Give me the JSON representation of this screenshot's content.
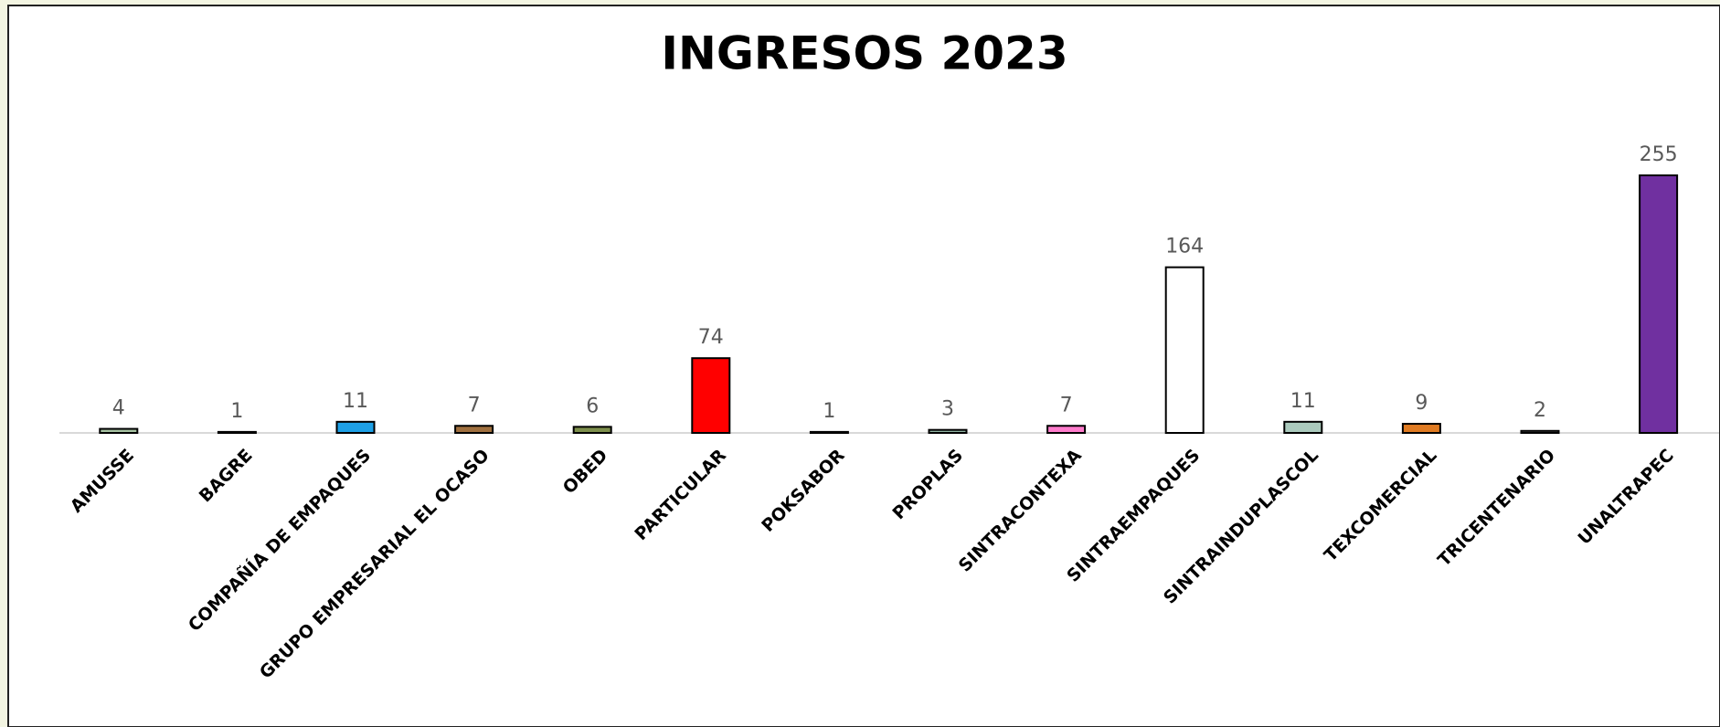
{
  "chart_data": {
    "type": "bar",
    "title": "INGRESOS 2023",
    "categories": [
      "AMUSSE",
      "BAGRE",
      "COMPAÑÍA DE EMPAQUES",
      "GRUPO EMPRESARIAL EL OCASO",
      "OBED",
      "PARTICULAR",
      "POKSABOR",
      "PROPLAS",
      "SINTRACONTEXA",
      "SINTRAEMPAQUES",
      "SINTRAINDUPLASCOL",
      "TEXCOMERCIAL",
      "TRICENTENARIO",
      "UNALTRAPEC"
    ],
    "values": [
      4,
      1,
      11,
      7,
      6,
      74,
      1,
      3,
      7,
      164,
      11,
      9,
      2,
      255
    ],
    "colors": [
      "#a6c2a2",
      "#b0b0b0",
      "#1ea0e6",
      "#a0703f",
      "#7d8f4c",
      "#ff0000",
      "#c0c0c0",
      "#8fb3a2",
      "#ff7ccc",
      "#ffffff",
      "#abcabd",
      "#e07b22",
      "#8a8a8a",
      "#7030a0"
    ]
  }
}
